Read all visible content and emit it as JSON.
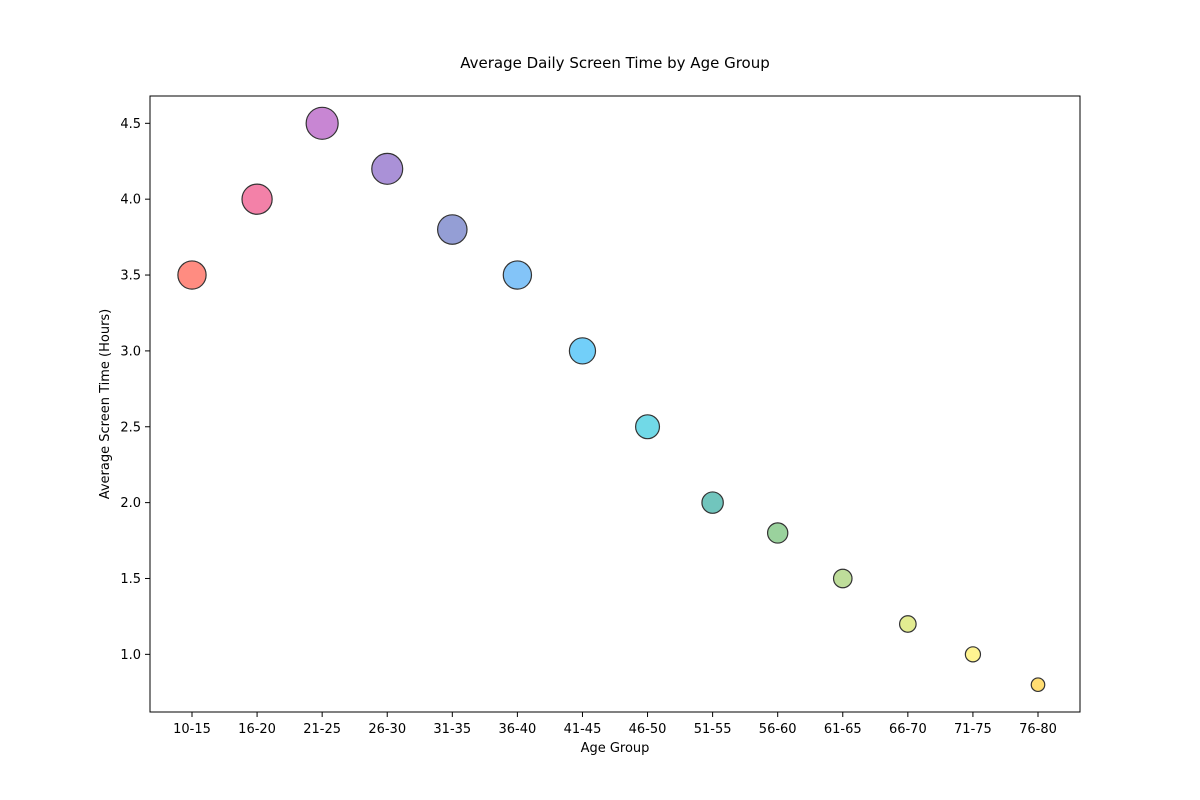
{
  "chart_data": {
    "type": "scatter",
    "title": "Average Daily Screen Time by Age Group",
    "xlabel": "Age Group",
    "ylabel": "Average Screen Time (Hours)",
    "categories": [
      "10-15",
      "16-20",
      "21-25",
      "26-30",
      "31-35",
      "36-40",
      "41-45",
      "46-50",
      "51-55",
      "56-60",
      "61-65",
      "66-70",
      "71-75",
      "76-80"
    ],
    "values": [
      3.5,
      4.0,
      4.5,
      4.2,
      3.8,
      3.5,
      3.0,
      2.5,
      2.0,
      1.8,
      1.5,
      1.2,
      1.0,
      0.8
    ],
    "ylim": [
      0.62,
      4.68
    ],
    "yticks": [
      1.0,
      1.5,
      2.0,
      2.5,
      3.0,
      3.5,
      4.0,
      4.5
    ],
    "colors": [
      "#FF6F61",
      "#F06292",
      "#BA68C8",
      "#9575CD",
      "#7986CB",
      "#64B5F6",
      "#4FC3F7",
      "#4DD0E1",
      "#4DB6AC",
      "#81C784",
      "#AED581",
      "#DCE775",
      "#FFF176",
      "#FFD54F"
    ],
    "grid": false,
    "legend": "none"
  }
}
